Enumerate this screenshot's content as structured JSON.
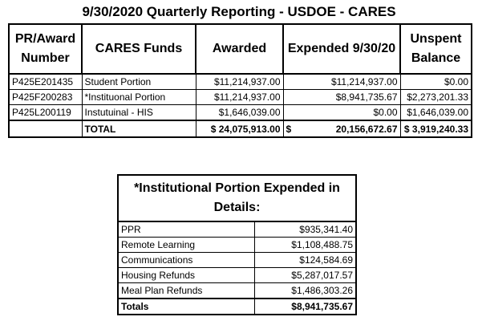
{
  "title": "9/30/2020 Quarterly Reporting - USDOE - CARES",
  "main_table": {
    "headers": {
      "award": "PR/Award Number",
      "funds": "CARES Funds",
      "awarded": "Awarded",
      "expended": "Expended 9/30/20",
      "unspent": "Unspent Balance"
    },
    "rows": [
      {
        "award": "P425E201435",
        "funds": "Student Portion",
        "awarded": "$11,214,937.00",
        "expended": "$11,214,937.00",
        "unspent": "$0.00"
      },
      {
        "award": "P425F200283",
        "funds": "*Instituonal Portion",
        "awarded": "$11,214,937.00",
        "expended": "$8,941,735.67",
        "unspent": "$2,273,201.33"
      },
      {
        "award": "P425L200119",
        "funds": "Instutuinal - HIS",
        "awarded": "$1,646,039.00",
        "expended": "$0.00",
        "unspent": "$1,646,039.00"
      }
    ],
    "total": {
      "label": "TOTAL",
      "awarded": "$ 24,075,913.00",
      "expended_currency": "$",
      "expended_amount": "20,156,672.67",
      "unspent": "$ 3,919,240.33"
    }
  },
  "detail_table": {
    "header": "*Institutional Portion Expended in Details:",
    "rows": [
      {
        "label": "PPR",
        "amount": "$935,341.40"
      },
      {
        "label": "Remote Learning",
        "amount": "$1,108,488.75"
      },
      {
        "label": "Communications",
        "amount": "$124,584.69"
      },
      {
        "label": "Housing Refunds",
        "amount": "$5,287,017.57"
      },
      {
        "label": "Meal Plan Refunds",
        "amount": "$1,486,303.26"
      }
    ],
    "total": {
      "label": "Totals",
      "amount": "$8,941,735.67"
    }
  }
}
